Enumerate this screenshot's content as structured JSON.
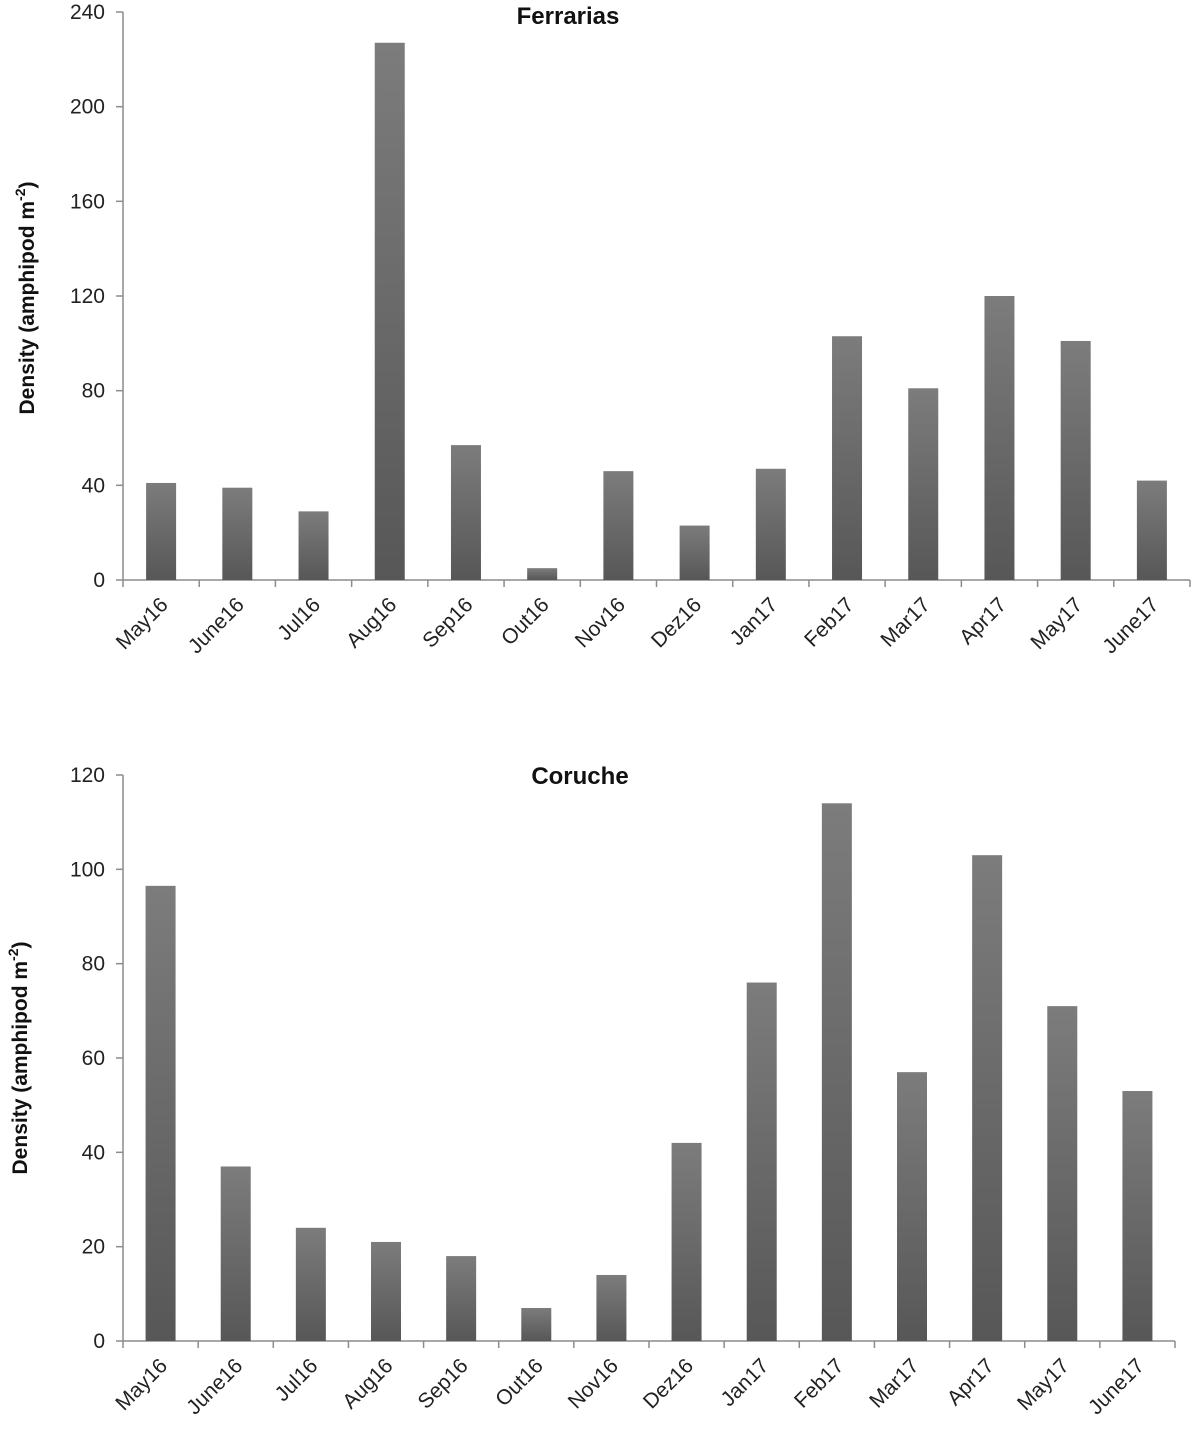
{
  "chart_data": [
    {
      "type": "bar",
      "title": "Ferrarias",
      "ylabel_main": "Density (amphipod m",
      "ylabel_sup": "-2",
      "ylabel_end": ")",
      "xlabel": "",
      "ylim": [
        0,
        240
      ],
      "yticks": [
        0,
        40,
        80,
        120,
        160,
        200,
        240
      ],
      "grid": false,
      "categories": [
        "May16",
        "June16",
        "Jul16",
        "Aug16",
        "Sep16",
        "Out16",
        "Nov16",
        "Dez16",
        "Jan17",
        "Feb17",
        "Mar17",
        "Apr17",
        "May17",
        "June17"
      ],
      "values": [
        41,
        39,
        29,
        227,
        57,
        5,
        46,
        23,
        47,
        103,
        81,
        120,
        101,
        42
      ],
      "bar_color": "#6a6a6a"
    },
    {
      "type": "bar",
      "title": "Coruche",
      "ylabel_main": "Density (amphipod m",
      "ylabel_sup": "-2",
      "ylabel_end": ")",
      "xlabel": "",
      "ylim": [
        0,
        120
      ],
      "yticks": [
        0,
        20,
        40,
        60,
        80,
        100,
        120
      ],
      "grid": false,
      "categories": [
        "May16",
        "June16",
        "Jul16",
        "Aug16",
        "Sep16",
        "Out16",
        "Nov16",
        "Dez16",
        "Jan17",
        "Feb17",
        "Mar17",
        "Apr17",
        "May17",
        "June17"
      ],
      "values": [
        96.5,
        37,
        24,
        21,
        18,
        7,
        14,
        42,
        76,
        114,
        57,
        103,
        71,
        53
      ],
      "bar_color": "#6a6a6a"
    }
  ]
}
